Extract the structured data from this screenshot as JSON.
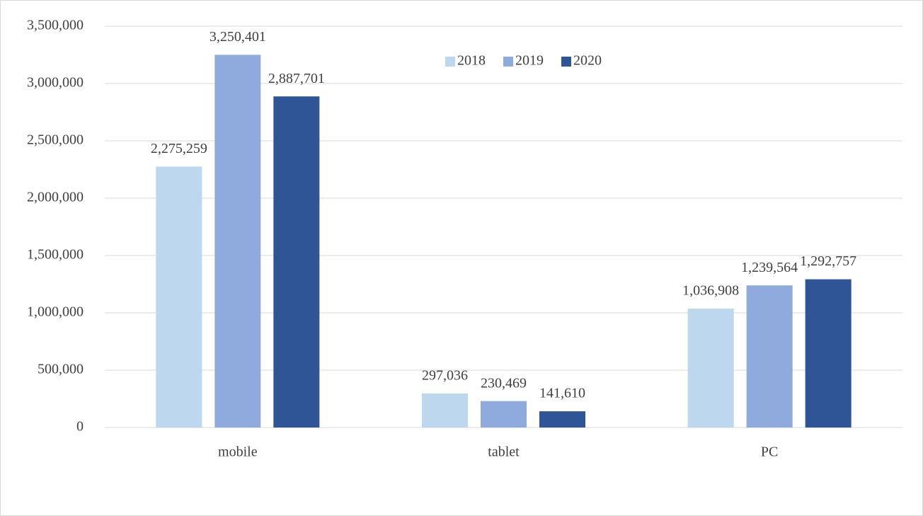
{
  "chart_data": {
    "type": "bar",
    "categories": [
      "mobile",
      "tablet",
      "PC"
    ],
    "series": [
      {
        "name": "2018",
        "color": "#bdd7ee",
        "values": [
          2275259,
          297036,
          1036908
        ],
        "value_labels": [
          "2,275,259",
          "297,036",
          "1,036,908"
        ]
      },
      {
        "name": "2019",
        "color": "#8faadc",
        "values": [
          3250401,
          230469,
          1239564
        ],
        "value_labels": [
          "3,250,401",
          "230,469",
          "1,239,564"
        ]
      },
      {
        "name": "2020",
        "color": "#2f5597",
        "values": [
          2887701,
          141610,
          1292757
        ],
        "value_labels": [
          "2,887,701",
          "141,610",
          "1,292,757"
        ]
      }
    ],
    "ylim": [
      0,
      3500000
    ],
    "yticks": [
      0,
      {
        "value": 500000,
        "label": "500,000"
      },
      {
        "value": 1000000,
        "label": "1,000,000"
      },
      {
        "value": 1500000,
        "label": "1,500,000"
      },
      {
        "value": 2000000,
        "label": "2,000,000"
      },
      {
        "value": 2500000,
        "label": "2,500,000"
      },
      {
        "value": 3000000,
        "label": "3,000,000"
      },
      {
        "value": 3500000,
        "label": "3,500,000"
      }
    ],
    "grid": true,
    "legend": "top"
  }
}
